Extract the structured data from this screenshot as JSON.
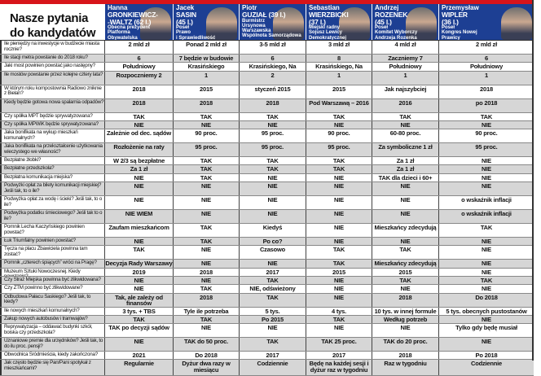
{
  "header": {
    "title_lines": [
      "Nasze pytania",
      "do kandydatów"
    ]
  },
  "colors": {
    "header_blue": "#1d3f93",
    "accent_red": "#d7141a",
    "row_gray": "#d6d6d6"
  },
  "candidates": [
    {
      "first": "Hanna",
      "name_lines": [
        "GRONKIEWICZ-",
        "-WALTZ (62 l.)"
      ],
      "role_lines": [
        "Obecna prezydent",
        "Platforma",
        "Obywatelska"
      ]
    },
    {
      "first": "Jacek",
      "name_lines": [
        "SASIN",
        "(45 l.)"
      ],
      "role_lines": [
        "Poseł",
        "Prawo",
        "i Sprawiedliwość"
      ]
    },
    {
      "first": "Piotr",
      "name_lines": [
        "GUZIAŁ (39 l.)"
      ],
      "role_lines": [
        "Burmistrz",
        "Ursynowa",
        "Warszawska",
        "Wspólnota Samorządowa"
      ]
    },
    {
      "first": "Sebastian",
      "name_lines": [
        "WIERZBICKI",
        "(37 l.)"
      ],
      "role_lines": [
        "Miejski radny",
        "Sojusz Lewicy",
        "Demokratycznej"
      ]
    },
    {
      "first": "Andrzej",
      "name_lines": [
        "ROZENEK",
        "(45 l.)"
      ],
      "role_lines": [
        "Poseł",
        "Komitet Wyborczy",
        "Andrzeja Rozenka"
      ]
    },
    {
      "first": "Przemysław",
      "name_lines": [
        "WIPLER",
        "(36 l.)"
      ],
      "role_lines": [
        "Poseł",
        "Kongres Nowej",
        "Prawicy"
      ]
    }
  ],
  "questions": [
    {
      "q": "Ile pieniędzy na inwestycje w budżecie miasta rocznie?",
      "answers": [
        "2 mld zł",
        "Ponad 2 mld zł",
        "3-5 mld zł",
        "3 mld zł",
        "4 mld zł",
        "2 mld zł"
      ]
    },
    {
      "q": "Ile stacji metra powstanie do 2018 roku?",
      "answers": [
        "6",
        "7 będzie w budowie",
        "6",
        "8",
        "Zaczniemy 7",
        "6"
      ]
    },
    {
      "q": "Jaki most powinien powstać jako następny?",
      "answers": [
        "Południowy",
        "Krasińskiego",
        "Krasińskiego, Na Zaporze",
        "Krasińskiego, Na Zaporze",
        "Południowy",
        "Południowy"
      ]
    },
    {
      "q": "Ile mostów powstanie przez kolejne cztery lata?",
      "answers": [
        "Rozpoczniemy 2",
        "1",
        "2",
        "1",
        "1",
        "1"
      ]
    },
    {
      "q": "W którym roku kompostownia Radiowo zniknie z Bielan?",
      "answers": [
        "2018",
        "2015",
        "styczeń 2015",
        "2015",
        "Jak najszybciej",
        "2018"
      ]
    },
    {
      "q": "Kiedy będzie gotowa nowa spalarnia odpadów?",
      "answers": [
        "2018",
        "2018",
        "2018",
        "Pod Warszawą – 2016",
        "2016",
        "po 2018"
      ]
    },
    {
      "q": "Czy spółka MPT będzie sprywatyzowana?",
      "answers": [
        "TAK",
        "TAK",
        "TAK",
        "TAK",
        "TAK",
        "TAK"
      ]
    },
    {
      "q": "Czy spółka MPWiK będzie sprywatyzowana?",
      "answers": [
        "NIE",
        "NIE",
        "NIE",
        "NIE",
        "NIE",
        "NIE"
      ]
    },
    {
      "q": "Jaka bonifikata na wykup mieszkań komunalnych?",
      "answers": [
        "Zależnie od dec. sądów",
        "90 proc.",
        "95 proc.",
        "90 proc.",
        "60-80 proc.",
        "90 proc."
      ]
    },
    {
      "q": "Jaka bonifikata na przekształcenie użytkowania wieczystego we własność?",
      "answers": [
        "Rozłożenie na raty",
        "95 proc.",
        "95 proc.",
        "95 proc.",
        "Za symboliczne 1 zł",
        "95 proc."
      ]
    },
    {
      "q": "Bezpłatne żłobki?",
      "answers": [
        "W 2/3 są bezpłatne",
        "TAK",
        "TAK",
        "TAK",
        "Za 1 zł",
        "NIE"
      ]
    },
    {
      "q": "Bezpłatne przedszkola?",
      "answers": [
        "Za 1 zł",
        "TAK",
        "TAK",
        "TAK",
        "Za 1 zł",
        "NIE"
      ]
    },
    {
      "q": "Bezpłatna komunikacja miejska?",
      "answers": [
        "NIE",
        "TAK",
        "NIE",
        "NIE",
        "TAK dla dzieci i 60+",
        "NIE"
      ]
    },
    {
      "q": "Podwyżki opłat za bilety komunikacji miejskiej? Jeśli tak, to o ile?",
      "answers": [
        "NIE",
        "NIE",
        "NIE",
        "NIE",
        "NIE",
        "NIE"
      ]
    },
    {
      "q": "Podwyżka opłat za wodę i ścieki? Jeśli tak, to o ile?",
      "answers": [
        "NIE",
        "NIE",
        "NIE",
        "NIE",
        "NIE",
        "o wskaźnik inflacji"
      ]
    },
    {
      "q": "Podwyżka podatku śmieciowego? Jeśli tak to o ile?",
      "answers": [
        "NIE WIEM",
        "NIE",
        "NIE",
        "NIE",
        "NIE",
        "o wskaźnik inflacji"
      ]
    },
    {
      "q": "Pomnik Lecha Kaczyńskiego powinien powstać?",
      "answers": [
        "Zaufam mieszkańcom",
        "TAK",
        "Kiedyś",
        "NIE",
        "Mieszkańcy zdecydują",
        "TAK"
      ]
    },
    {
      "q": "Łuk Triumfalny powinien powstać?",
      "answers": [
        "NIE",
        "TAK",
        "Po co?",
        "NIE",
        "NIE",
        "NIE"
      ]
    },
    {
      "q": "Tęcza na placu Zbawiciela powinna tam zostać?",
      "answers": [
        "TAK",
        "NIE",
        "Czasowo",
        "TAK",
        "TAK",
        "NIE"
      ]
    },
    {
      "q": "Pomnik „czterech śpiących” wróci na Pragę?",
      "answers": [
        "Decyzja Rady Warszawy",
        "NIE",
        "NIE",
        "TAK",
        "Mieszkańcy zdecydują",
        "NIE"
      ]
    },
    {
      "q": "Muzeum Sztuki Nowoczesnej. Kiedy powstanie?",
      "answers": [
        "2019",
        "2018",
        "2017",
        "2015",
        "2015",
        "NIE"
      ]
    },
    {
      "q": "Czy Straż Miejska powinna być zlikwidowana?",
      "answers": [
        "NIE",
        "NIE",
        "TAK",
        "NIE",
        "TAK",
        "TAK"
      ]
    },
    {
      "q": "Czy ZTM powinno być zlikwidowane?",
      "answers": [
        "NIE",
        "TAK",
        "NIE, odświeżony",
        "NIE",
        "NIE",
        "NIE"
      ]
    },
    {
      "q": "Odbudowa Pałacu Saskiego? Jeśli tak, to kiedy?",
      "answers": [
        "Tak, ale zależy od finansów",
        "2018",
        "TAK",
        "NIE",
        "2018",
        "Do 2018"
      ]
    },
    {
      "q": "Ile nowych mieszkań komunalnych?",
      "answers": [
        "3 tys. + TBS",
        "Tyle ile potrzeba",
        "5 tys.",
        "4 tys.",
        "10 tys. w innej formule",
        "5 tys. obecnych pustostanów"
      ]
    },
    {
      "q": "Zakup nowych autobusów i tramwajów?",
      "answers": [
        "TAK",
        "TAK",
        "Po 2015",
        "TAK",
        "Według potrzeb",
        "NIE"
      ]
    },
    {
      "q": "Reprywatyzacja – oddawać budynki szkół, boiska czy przedszkola?",
      "answers": [
        "TAK po decyzji sądów",
        "NIE",
        "NIE",
        "NIE",
        "NIE",
        "Tylko gdy będę musiał"
      ]
    },
    {
      "q": "Uznaniowe premie dla urzędników? Jeśli tak, to do ilu proc. pensji?",
      "answers": [
        "NIE",
        "TAK do 50 proc.",
        "TAK",
        "TAK 25 proc.",
        "TAK do 20 proc.",
        "NIE"
      ]
    },
    {
      "q": "Obwodnica Śródmieścia, kiedy zakończona?",
      "answers": [
        "2021",
        "Do 2018",
        "2017",
        "2017",
        "2018",
        "Po 2018"
      ]
    },
    {
      "q": "Jak często będzie się Pan/Pani spotykał z mieszkańcami?",
      "answers": [
        "Regularnie",
        "Dyżur dwa razy w miesiącu",
        "Codziennie",
        "Będę na każdej sesji i dyżur raz w tygodniu",
        "Raz w tygodniu",
        "Codziennie"
      ]
    }
  ]
}
